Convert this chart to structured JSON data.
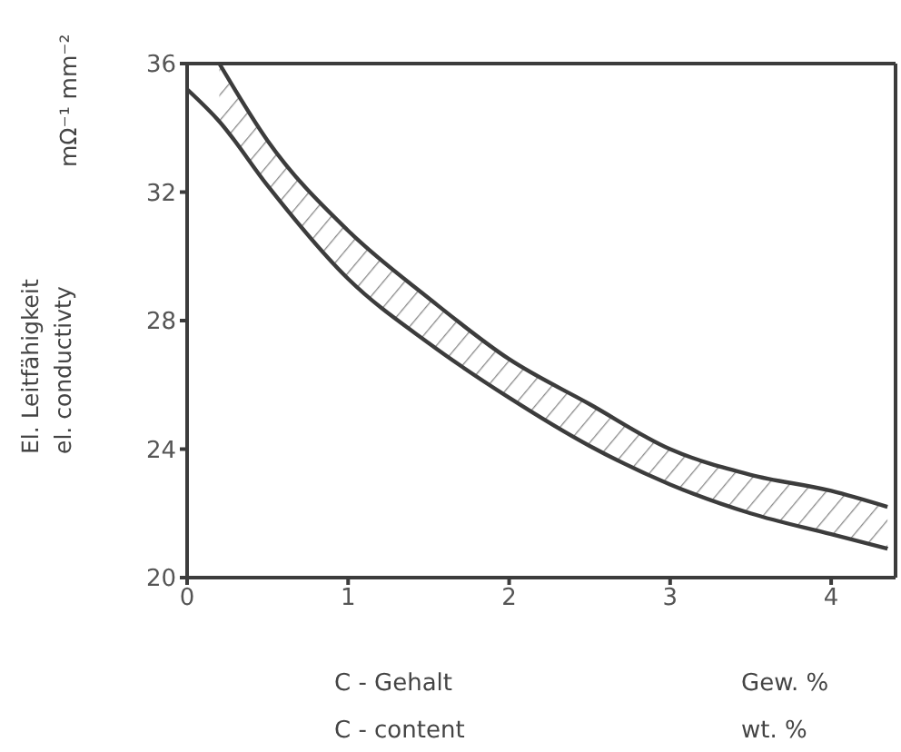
{
  "chart_data": {
    "type": "line",
    "xlabel": "C - Gehalt\nC - content",
    "ylabel": "El. Leitfähigkeit\nel. conductivty",
    "annotations": [
      "mΩ⁻¹ mm⁻²",
      "Gew. %\nwt. %"
    ],
    "xlim": [
      0,
      4.4
    ],
    "xticks": [
      0,
      1,
      2,
      3,
      4
    ],
    "ylim": [
      20,
      36
    ],
    "yticks": [
      20,
      24,
      28,
      32,
      36
    ],
    "grid": false,
    "marker": "none",
    "line_style": "solid",
    "series": [
      {
        "color": "#3c3c3c",
        "x": [
          0,
          0.2,
          0.5,
          1,
          1.5,
          2,
          2.5,
          3,
          3.5,
          4,
          4.35
        ],
        "values": [
          35.2,
          34.2,
          32.2,
          29.3,
          27.3,
          25.6,
          24.1,
          22.9,
          22.0,
          21.35,
          20.9
        ],
        "lower": [
          null,
          34.2,
          32.2,
          29.3,
          27.3,
          25.6,
          24.1,
          22.9,
          22.0,
          21.35,
          20.9
        ],
        "upper": [
          null,
          36,
          33.6,
          30.8,
          28.7,
          26.8,
          25.4,
          24.0,
          23.2,
          22.7,
          22.2
        ]
      },
      {
        "color": "#3c3c3c",
        "x": [
          0.2,
          0.5,
          1,
          1.5,
          2,
          2.5,
          3,
          3.5,
          4,
          4.35
        ],
        "values": [
          36,
          33.6,
          30.8,
          28.7,
          26.8,
          25.4,
          24.0,
          23.2,
          22.7,
          22.2
        ]
      }
    ]
  }
}
